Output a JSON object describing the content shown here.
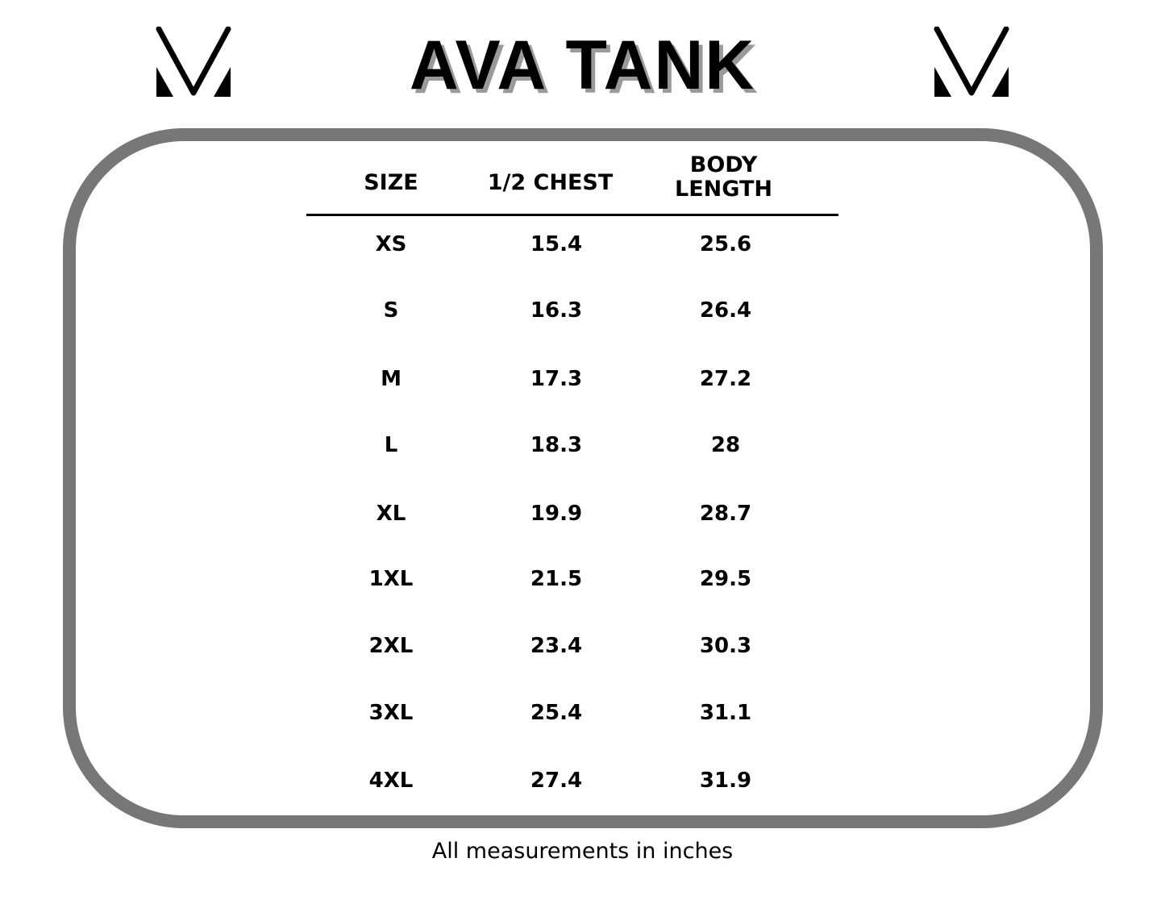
{
  "title": "AVA TANK",
  "logo_icon": "v-monogram-logo",
  "colors": {
    "frame": "#777777",
    "title_shadow": "#9a9a9a",
    "text": "#000000"
  },
  "table": {
    "headers": [
      "SIZE",
      "1/2 CHEST",
      "BODY\nLENGTH"
    ],
    "header_body_line1": "BODY",
    "header_body_line2": "LENGTH",
    "rows": [
      [
        "XS",
        "15.4",
        "25.6"
      ],
      [
        "S",
        "16.3",
        "26.4"
      ],
      [
        "M",
        "17.3",
        "27.2"
      ],
      [
        "L",
        "18.3",
        "28"
      ],
      [
        "XL",
        "19.9",
        "28.7"
      ],
      [
        "1XL",
        "21.5",
        "29.5"
      ],
      [
        "2XL",
        "23.4",
        "30.3"
      ],
      [
        "3XL",
        "25.4",
        "31.1"
      ],
      [
        "4XL",
        "27.4",
        "31.9"
      ]
    ]
  },
  "footnote": "All measurements in inches"
}
